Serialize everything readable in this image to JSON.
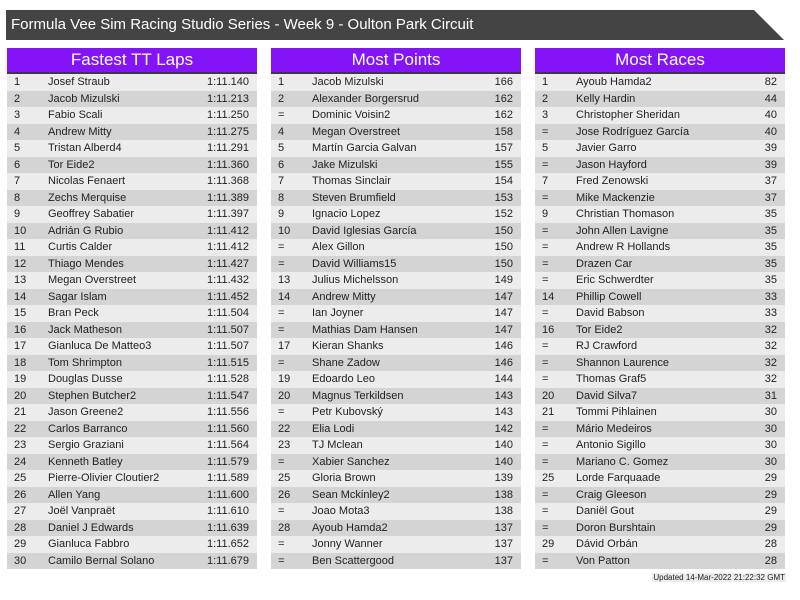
{
  "title": "Formula Vee Sim Racing Studio Series - Week 9 - Oulton Park Circuit",
  "updated": "Updated 14-Mar-2022 21:22:32 GMT",
  "colors": {
    "header": "#8314f8",
    "title_bar": "#444444",
    "row_light": "#ececec",
    "row_dark": "#d4d4d4"
  },
  "tables": [
    {
      "title": "Fastest TT Laps",
      "rows": [
        [
          "1",
          "Josef Straub",
          "1:11.140"
        ],
        [
          "2",
          "Jacob Mizulski",
          "1:11.213"
        ],
        [
          "3",
          "Fabio Scali",
          "1:11.250"
        ],
        [
          "4",
          "Andrew Mitty",
          "1:11.275"
        ],
        [
          "5",
          "Tristan Alberd4",
          "1:11.291"
        ],
        [
          "6",
          "Tor Eide2",
          "1:11.360"
        ],
        [
          "7",
          "Nicolas Fenaert",
          "1:11.368"
        ],
        [
          "8",
          "Zechs Merquise",
          "1:11.389"
        ],
        [
          "9",
          "Geoffrey Sabatier",
          "1:11.397"
        ],
        [
          "10",
          "Adrián G Rubio",
          "1:11.412"
        ],
        [
          "11",
          "Curtis Calder",
          "1:11.412"
        ],
        [
          "12",
          "Thiago Mendes",
          "1:11.427"
        ],
        [
          "13",
          "Megan Overstreet",
          "1:11.432"
        ],
        [
          "14",
          "Sagar Islam",
          "1:11.452"
        ],
        [
          "15",
          "Bran Peck",
          "1:11.504"
        ],
        [
          "16",
          "Jack Matheson",
          "1:11.507"
        ],
        [
          "17",
          "Gianluca De Matteo3",
          "1:11.507"
        ],
        [
          "18",
          "Tom Shrimpton",
          "1:11.515"
        ],
        [
          "19",
          "Douglas Dusse",
          "1:11.528"
        ],
        [
          "20",
          "Stephen Butcher2",
          "1:11.547"
        ],
        [
          "21",
          "Jason Greene2",
          "1:11.556"
        ],
        [
          "22",
          "Carlos Barranco",
          "1:11.560"
        ],
        [
          "23",
          "Sergio Graziani",
          "1:11.564"
        ],
        [
          "24",
          "Kenneth Batley",
          "1:11.579"
        ],
        [
          "25",
          "Pierre-Olivier Cloutier2",
          "1:11.589"
        ],
        [
          "26",
          "Allen Yang",
          "1:11.600"
        ],
        [
          "27",
          "Joël Vanpraët",
          "1:11.610"
        ],
        [
          "28",
          "Daniel J Edwards",
          "1:11.639"
        ],
        [
          "29",
          "Gianluca Fabbro",
          "1:11.652"
        ],
        [
          "30",
          "Camilo Bernal Solano",
          "1:11.679"
        ]
      ]
    },
    {
      "title": "Most Points",
      "rows": [
        [
          "1",
          "Jacob Mizulski",
          "166"
        ],
        [
          "2",
          "Alexander Borgersrud",
          "162"
        ],
        [
          "=",
          "Dominic Voisin2",
          "162"
        ],
        [
          "4",
          "Megan Overstreet",
          "158"
        ],
        [
          "5",
          "Martín Garcia Galvan",
          "157"
        ],
        [
          "6",
          "Jake Mizulski",
          "155"
        ],
        [
          "7",
          "Thomas Sinclair",
          "154"
        ],
        [
          "8",
          "Steven Brumfield",
          "153"
        ],
        [
          "9",
          "Ignacio Lopez",
          "152"
        ],
        [
          "10",
          "David Iglesias García",
          "150"
        ],
        [
          "=",
          "Alex Gillon",
          "150"
        ],
        [
          "=",
          "David Williams15",
          "150"
        ],
        [
          "13",
          "Julius Michelsson",
          "149"
        ],
        [
          "14",
          "Andrew Mitty",
          "147"
        ],
        [
          "=",
          "Ian Joyner",
          "147"
        ],
        [
          "=",
          "Mathias Dam Hansen",
          "147"
        ],
        [
          "17",
          "Kieran Shanks",
          "146"
        ],
        [
          "=",
          "Shane Zadow",
          "146"
        ],
        [
          "19",
          "Edoardo Leo",
          "144"
        ],
        [
          "20",
          "Magnus Terkildsen",
          "143"
        ],
        [
          "=",
          "Petr Kubovský",
          "143"
        ],
        [
          "22",
          "Elia Lodi",
          "142"
        ],
        [
          "23",
          "TJ Mclean",
          "140"
        ],
        [
          "=",
          "Xabier Sanchez",
          "140"
        ],
        [
          "25",
          "Gloria Brown",
          "139"
        ],
        [
          "26",
          "Sean Mckinley2",
          "138"
        ],
        [
          "=",
          "Joao Mota3",
          "138"
        ],
        [
          "28",
          "Ayoub Hamda2",
          "137"
        ],
        [
          "=",
          "Jonny Wanner",
          "137"
        ],
        [
          "=",
          "Ben Scattergood",
          "137"
        ]
      ]
    },
    {
      "title": "Most Races",
      "rows": [
        [
          "1",
          "Ayoub Hamda2",
          "82"
        ],
        [
          "2",
          "Kelly Hardin",
          "44"
        ],
        [
          "3",
          "Christopher Sheridan",
          "40"
        ],
        [
          "=",
          "Jose Rodríguez García",
          "40"
        ],
        [
          "5",
          "Javier Garro",
          "39"
        ],
        [
          "=",
          "Jason Hayford",
          "39"
        ],
        [
          "7",
          "Fred Zenowski",
          "37"
        ],
        [
          "=",
          "Mike Mackenzie",
          "37"
        ],
        [
          "9",
          "Christian Thomason",
          "35"
        ],
        [
          "=",
          "John Allen Lavigne",
          "35"
        ],
        [
          "=",
          "Andrew R Hollands",
          "35"
        ],
        [
          "=",
          "Drazen Car",
          "35"
        ],
        [
          "=",
          "Eric Schwerdter",
          "35"
        ],
        [
          "14",
          "Phillip Cowell",
          "33"
        ],
        [
          "=",
          "David Babson",
          "33"
        ],
        [
          "16",
          "Tor Eide2",
          "32"
        ],
        [
          "=",
          "RJ Crawford",
          "32"
        ],
        [
          "=",
          "Shannon Laurence",
          "32"
        ],
        [
          "=",
          "Thomas Graf5",
          "32"
        ],
        [
          "20",
          "David Silva7",
          "31"
        ],
        [
          "21",
          "Tommi Pihlainen",
          "30"
        ],
        [
          "=",
          "Mário Medeiros",
          "30"
        ],
        [
          "=",
          "Antonio Sigillo",
          "30"
        ],
        [
          "=",
          "Mariano C. Gomez",
          "30"
        ],
        [
          "25",
          "Lorde Farquaade",
          "29"
        ],
        [
          "=",
          "Craig Gleeson",
          "29"
        ],
        [
          "=",
          "Daniël Gout",
          "29"
        ],
        [
          "=",
          "Doron Burshtain",
          "29"
        ],
        [
          "29",
          "Dávid Orbán",
          "28"
        ],
        [
          "=",
          "Von Patton",
          "28"
        ]
      ]
    }
  ]
}
